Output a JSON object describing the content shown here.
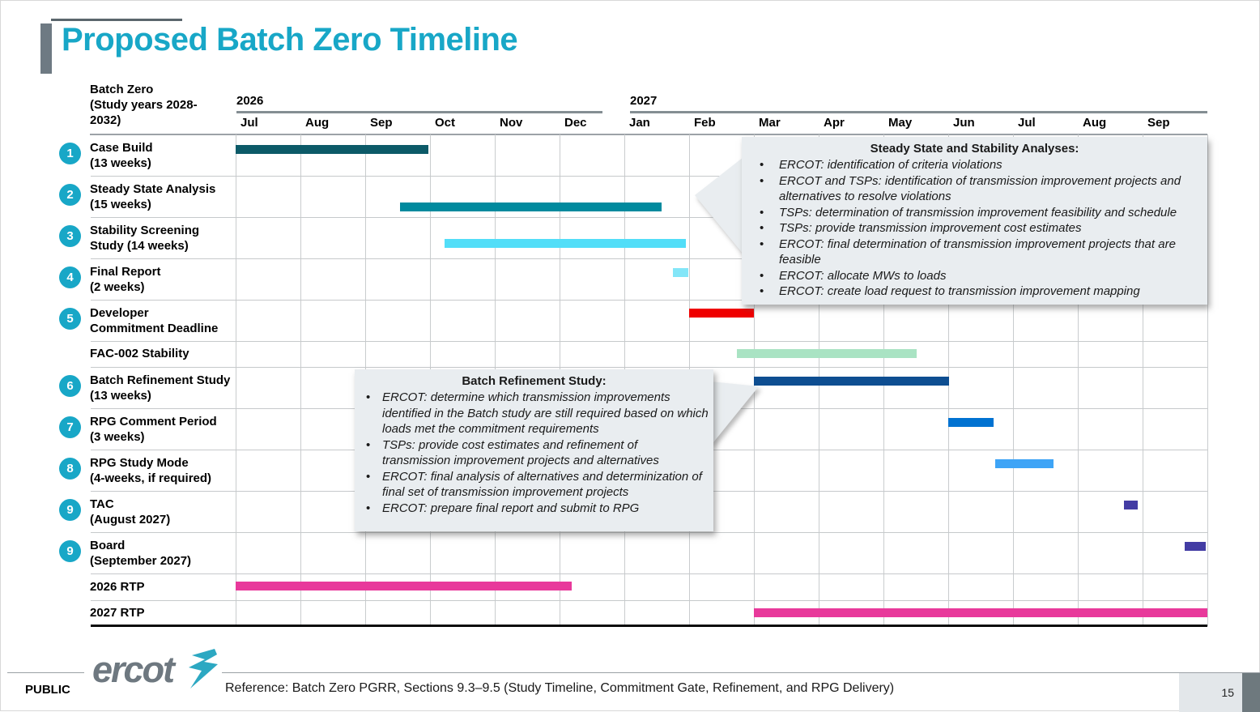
{
  "slide_title": "Proposed Batch Zero Timeline",
  "colors": {
    "accent_teal": "#18A7C7",
    "case_build": "#0C5A68",
    "steady_state": "#008A9E",
    "stability_screening": "#52DEF8",
    "final_report": "#83E6F8",
    "developer_commitment": "#EF0000",
    "fac_002": "#A9E3C3",
    "batch_refinement": "#0E4E91",
    "rpg_comment": "#0072D1",
    "rpg_study_mode": "#3EA4F6",
    "tac_board": "#433CA4",
    "rtp_pink": "#E8399B"
  },
  "chart_data": {
    "type": "gantt",
    "corner_label_lines": [
      "Batch Zero",
      "(Study years 2028-",
      "2032)"
    ],
    "timeline_start": "Jul 2026",
    "timeline_end": "Sep 2027",
    "years": [
      {
        "label": "2026",
        "months": [
          "Jul",
          "Aug",
          "Sep",
          "Oct",
          "Nov",
          "Dec"
        ]
      },
      {
        "label": "2027",
        "months": [
          "Jan",
          "Feb",
          "Mar",
          "Apr",
          "May",
          "Jun",
          "Jul",
          "Aug",
          "Sep"
        ]
      }
    ],
    "tasks": [
      {
        "num": "1",
        "label_lines": [
          "Case Build",
          "(13 weeks)"
        ],
        "start_month": 0.0,
        "end_month": 2.98,
        "color": "#0C5A68"
      },
      {
        "num": "2",
        "label_lines": [
          "Steady State Analysis",
          "(15 weeks)"
        ],
        "start_month": 2.54,
        "end_month": 6.57,
        "color": "#008A9E"
      },
      {
        "num": "3",
        "label_lines": [
          "Stability Screening",
          "Study (14 weeks)"
        ],
        "start_month": 3.23,
        "end_month": 6.95,
        "color": "#52DEF8"
      },
      {
        "num": "4",
        "label_lines": [
          "Final Report",
          "(2 weeks)"
        ],
        "start_month": 6.75,
        "end_month": 6.99,
        "color": "#83E6F8"
      },
      {
        "num": "5",
        "label_lines": [
          "Developer",
          "Commitment Deadline"
        ],
        "start_month": 7.0,
        "end_month": 8.0,
        "color": "#EF0000"
      },
      {
        "num": "",
        "label_lines": [
          "FAC-002 Stability"
        ],
        "start_month": 7.74,
        "end_month": 10.51,
        "color": "#A9E3C3"
      },
      {
        "num": "6",
        "label_lines": [
          "Batch Refinement Study",
          "(13 weeks)"
        ],
        "start_month": 8.0,
        "end_month": 11.01,
        "color": "#0E4E91"
      },
      {
        "num": "7",
        "label_lines": [
          "RPG Comment Period",
          "(3 weeks)"
        ],
        "start_month": 11.0,
        "end_month": 11.7,
        "color": "#0072D1"
      },
      {
        "num": "8",
        "label_lines": [
          "RPG Study Mode",
          "(4-weeks, if required)"
        ],
        "start_month": 11.72,
        "end_month": 12.63,
        "color": "#3EA4F6"
      },
      {
        "num": "9",
        "label_lines": [
          "TAC",
          "(August 2027)"
        ],
        "start_month": 13.71,
        "end_month": 13.93,
        "color": "#433CA4"
      },
      {
        "num": "9",
        "label_lines": [
          "Board",
          "(September 2027)"
        ],
        "start_month": 14.65,
        "end_month": 14.98,
        "color": "#433CA4"
      },
      {
        "num": "",
        "label_lines": [
          "2026 RTP"
        ],
        "start_month": 0.0,
        "end_month": 5.19,
        "color": "#E8399B"
      },
      {
        "num": "",
        "label_lines": [
          "2027 RTP"
        ],
        "start_month": 8.0,
        "end_month": 15.0,
        "color": "#E8399B"
      }
    ]
  },
  "callouts": [
    {
      "title": "Steady State and Stability Analyses:",
      "bullets": [
        "ERCOT: identification of criteria violations",
        "ERCOT and TSPs: identification of transmission improvement projects and alternatives to resolve violations",
        "TSPs: determination of transmission improvement feasibility and schedule",
        "TSPs: provide transmission improvement cost estimates",
        "ERCOT: final determination of transmission improvement projects that are feasible",
        "ERCOT: allocate MWs to loads",
        "ERCOT: create load request to transmission improvement mapping"
      ]
    },
    {
      "title": "Batch Refinement Study:",
      "bullets": [
        "ERCOT: determine which transmission improvements identified in the Batch study are still required based on which loads met the commitment requirements",
        "TSPs: provide cost estimates and refinement of transmission improvement projects and alternatives",
        "ERCOT: final analysis of alternatives and determinization of final set of transmission improvement projects",
        "ERCOT: prepare final report and submit to RPG"
      ]
    }
  ],
  "footer": {
    "classification": "PUBLIC",
    "logo_text": "ercot",
    "reference": "Reference: Batch Zero PGRR, Sections 9.3–9.5 (Study Timeline, Commitment Gate, Refinement, and RPG Delivery)",
    "page_number": "15"
  }
}
